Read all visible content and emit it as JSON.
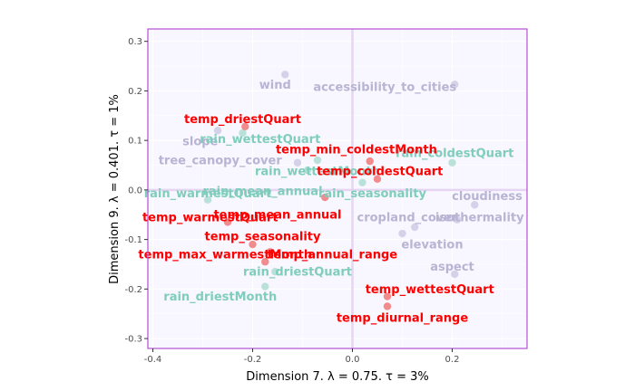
{
  "chart_data": {
    "type": "scatter",
    "xlabel": "Dimension 7.    λ = 0.75.   τ = 3%",
    "ylabel": "Dimension 9.    λ = 0.401.   τ = 1%",
    "xlim": [
      -0.41,
      0.35
    ],
    "ylim": [
      -0.32,
      0.325
    ],
    "x_ticks": [
      -0.4,
      -0.2,
      0.0,
      0.2
    ],
    "x_tick_labels": [
      "-0.4",
      "-0.2",
      "0.0",
      "0.2"
    ],
    "y_ticks": [
      -0.3,
      -0.2,
      -0.1,
      0.0,
      0.1,
      0.2,
      0.3
    ],
    "y_tick_labels": [
      "-0.3",
      "-0.2",
      "-0.1",
      "0.0",
      "0.1",
      "0.2",
      "0.3"
    ],
    "grid": true,
    "colors": {
      "temp": "#ff0000",
      "temp_point": "#f08080",
      "rain": "#7fcdbb",
      "rain_point": "#b2dfd5",
      "other": "#b8b4d4",
      "other_point": "#d0cde6",
      "panel_bg": "#f8f6ff",
      "frame": "#b54fd6",
      "zero_line": "#e6d5f2"
    },
    "points": [
      {
        "label": "wind",
        "group": "other",
        "x": -0.135,
        "y": 0.233,
        "lx": -0.155,
        "ly": 0.213
      },
      {
        "label": "accessibility_to_cities",
        "group": "other",
        "x": 0.205,
        "y": 0.213,
        "lx": 0.065,
        "ly": 0.208
      },
      {
        "label": "temp_driestQuart",
        "group": "temp",
        "x": -0.215,
        "y": 0.128,
        "lx": -0.22,
        "ly": 0.143
      },
      {
        "label": "slope",
        "group": "other",
        "x": -0.27,
        "y": 0.12,
        "lx": -0.305,
        "ly": 0.098
      },
      {
        "label": "rain_wettestQuart",
        "group": "rain",
        "x": -0.22,
        "y": 0.115,
        "lx": -0.185,
        "ly": 0.103
      },
      {
        "label": "temp_min_coldestMonth",
        "group": "temp",
        "x": 0.035,
        "y": 0.058,
        "lx": 0.008,
        "ly": 0.082
      },
      {
        "label": "rain_coldestQuart",
        "group": "rain",
        "x": 0.2,
        "y": 0.055,
        "lx": 0.205,
        "ly": 0.075
      },
      {
        "label": "tree_canopy_cover",
        "group": "other",
        "x": -0.11,
        "y": 0.055,
        "lx": -0.265,
        "ly": 0.06
      },
      {
        "label": "rain_wettestMonth",
        "group": "rain",
        "x": -0.07,
        "y": 0.06,
        "lx": -0.07,
        "ly": 0.038
      },
      {
        "label": "temp_coldestQuart",
        "group": "temp",
        "x": 0.05,
        "y": 0.022,
        "lx": 0.055,
        "ly": 0.038
      },
      {
        "label": "rain_mean_annual",
        "group": "rain",
        "x": -0.09,
        "y": 0.04,
        "lx": -0.18,
        "ly": -0.002
      },
      {
        "label": "rain_warmestQuart",
        "group": "rain",
        "x": -0.29,
        "y": -0.02,
        "lx": -0.29,
        "ly": -0.007
      },
      {
        "label": "rain_seasonality",
        "group": "rain",
        "x": 0.02,
        "y": 0.015,
        "lx": 0.04,
        "ly": -0.007
      },
      {
        "label": "cloudiness",
        "group": "other",
        "x": 0.245,
        "y": -0.03,
        "lx": 0.27,
        "ly": -0.012
      },
      {
        "label": "temp_warmestQuart",
        "group": "temp",
        "x": -0.25,
        "y": -0.065,
        "lx": -0.285,
        "ly": -0.055
      },
      {
        "label": "temp_mean_annual",
        "group": "temp",
        "x": -0.055,
        "y": -0.015,
        "lx": -0.15,
        "ly": -0.05
      },
      {
        "label": "cropland_cover",
        "group": "other",
        "x": 0.125,
        "y": -0.075,
        "lx": 0.11,
        "ly": -0.055
      },
      {
        "label": "isothermality",
        "group": "other",
        "x": 0.21,
        "y": -0.06,
        "lx": 0.255,
        "ly": -0.055
      },
      {
        "label": "temp_seasonality",
        "group": "temp",
        "x": -0.2,
        "y": -0.11,
        "lx": -0.18,
        "ly": -0.093
      },
      {
        "label": "elevation",
        "group": "other",
        "x": 0.1,
        "y": -0.088,
        "lx": 0.16,
        "ly": -0.11
      },
      {
        "label": "temp_max_warmestMonth",
        "group": "temp",
        "x": -0.175,
        "y": -0.145,
        "lx": -0.255,
        "ly": -0.13
      },
      {
        "label": "temp_annual_range",
        "group": "temp",
        "x": -0.165,
        "y": -0.125,
        "lx": -0.04,
        "ly": -0.13
      },
      {
        "label": "aspect",
        "group": "other",
        "x": 0.205,
        "y": -0.17,
        "lx": 0.2,
        "ly": -0.155
      },
      {
        "label": "rain_driestQuart",
        "group": "rain",
        "x": -0.155,
        "y": -0.165,
        "lx": -0.11,
        "ly": -0.165
      },
      {
        "label": "temp_wettestQuart",
        "group": "temp",
        "x": 0.07,
        "y": -0.215,
        "lx": 0.155,
        "ly": -0.2
      },
      {
        "label": "rain_driestMonth",
        "group": "rain",
        "x": -0.175,
        "y": -0.195,
        "lx": -0.265,
        "ly": -0.215
      },
      {
        "label": "temp_diurnal_range",
        "group": "temp",
        "x": 0.07,
        "y": -0.235,
        "lx": 0.1,
        "ly": -0.258
      }
    ]
  }
}
